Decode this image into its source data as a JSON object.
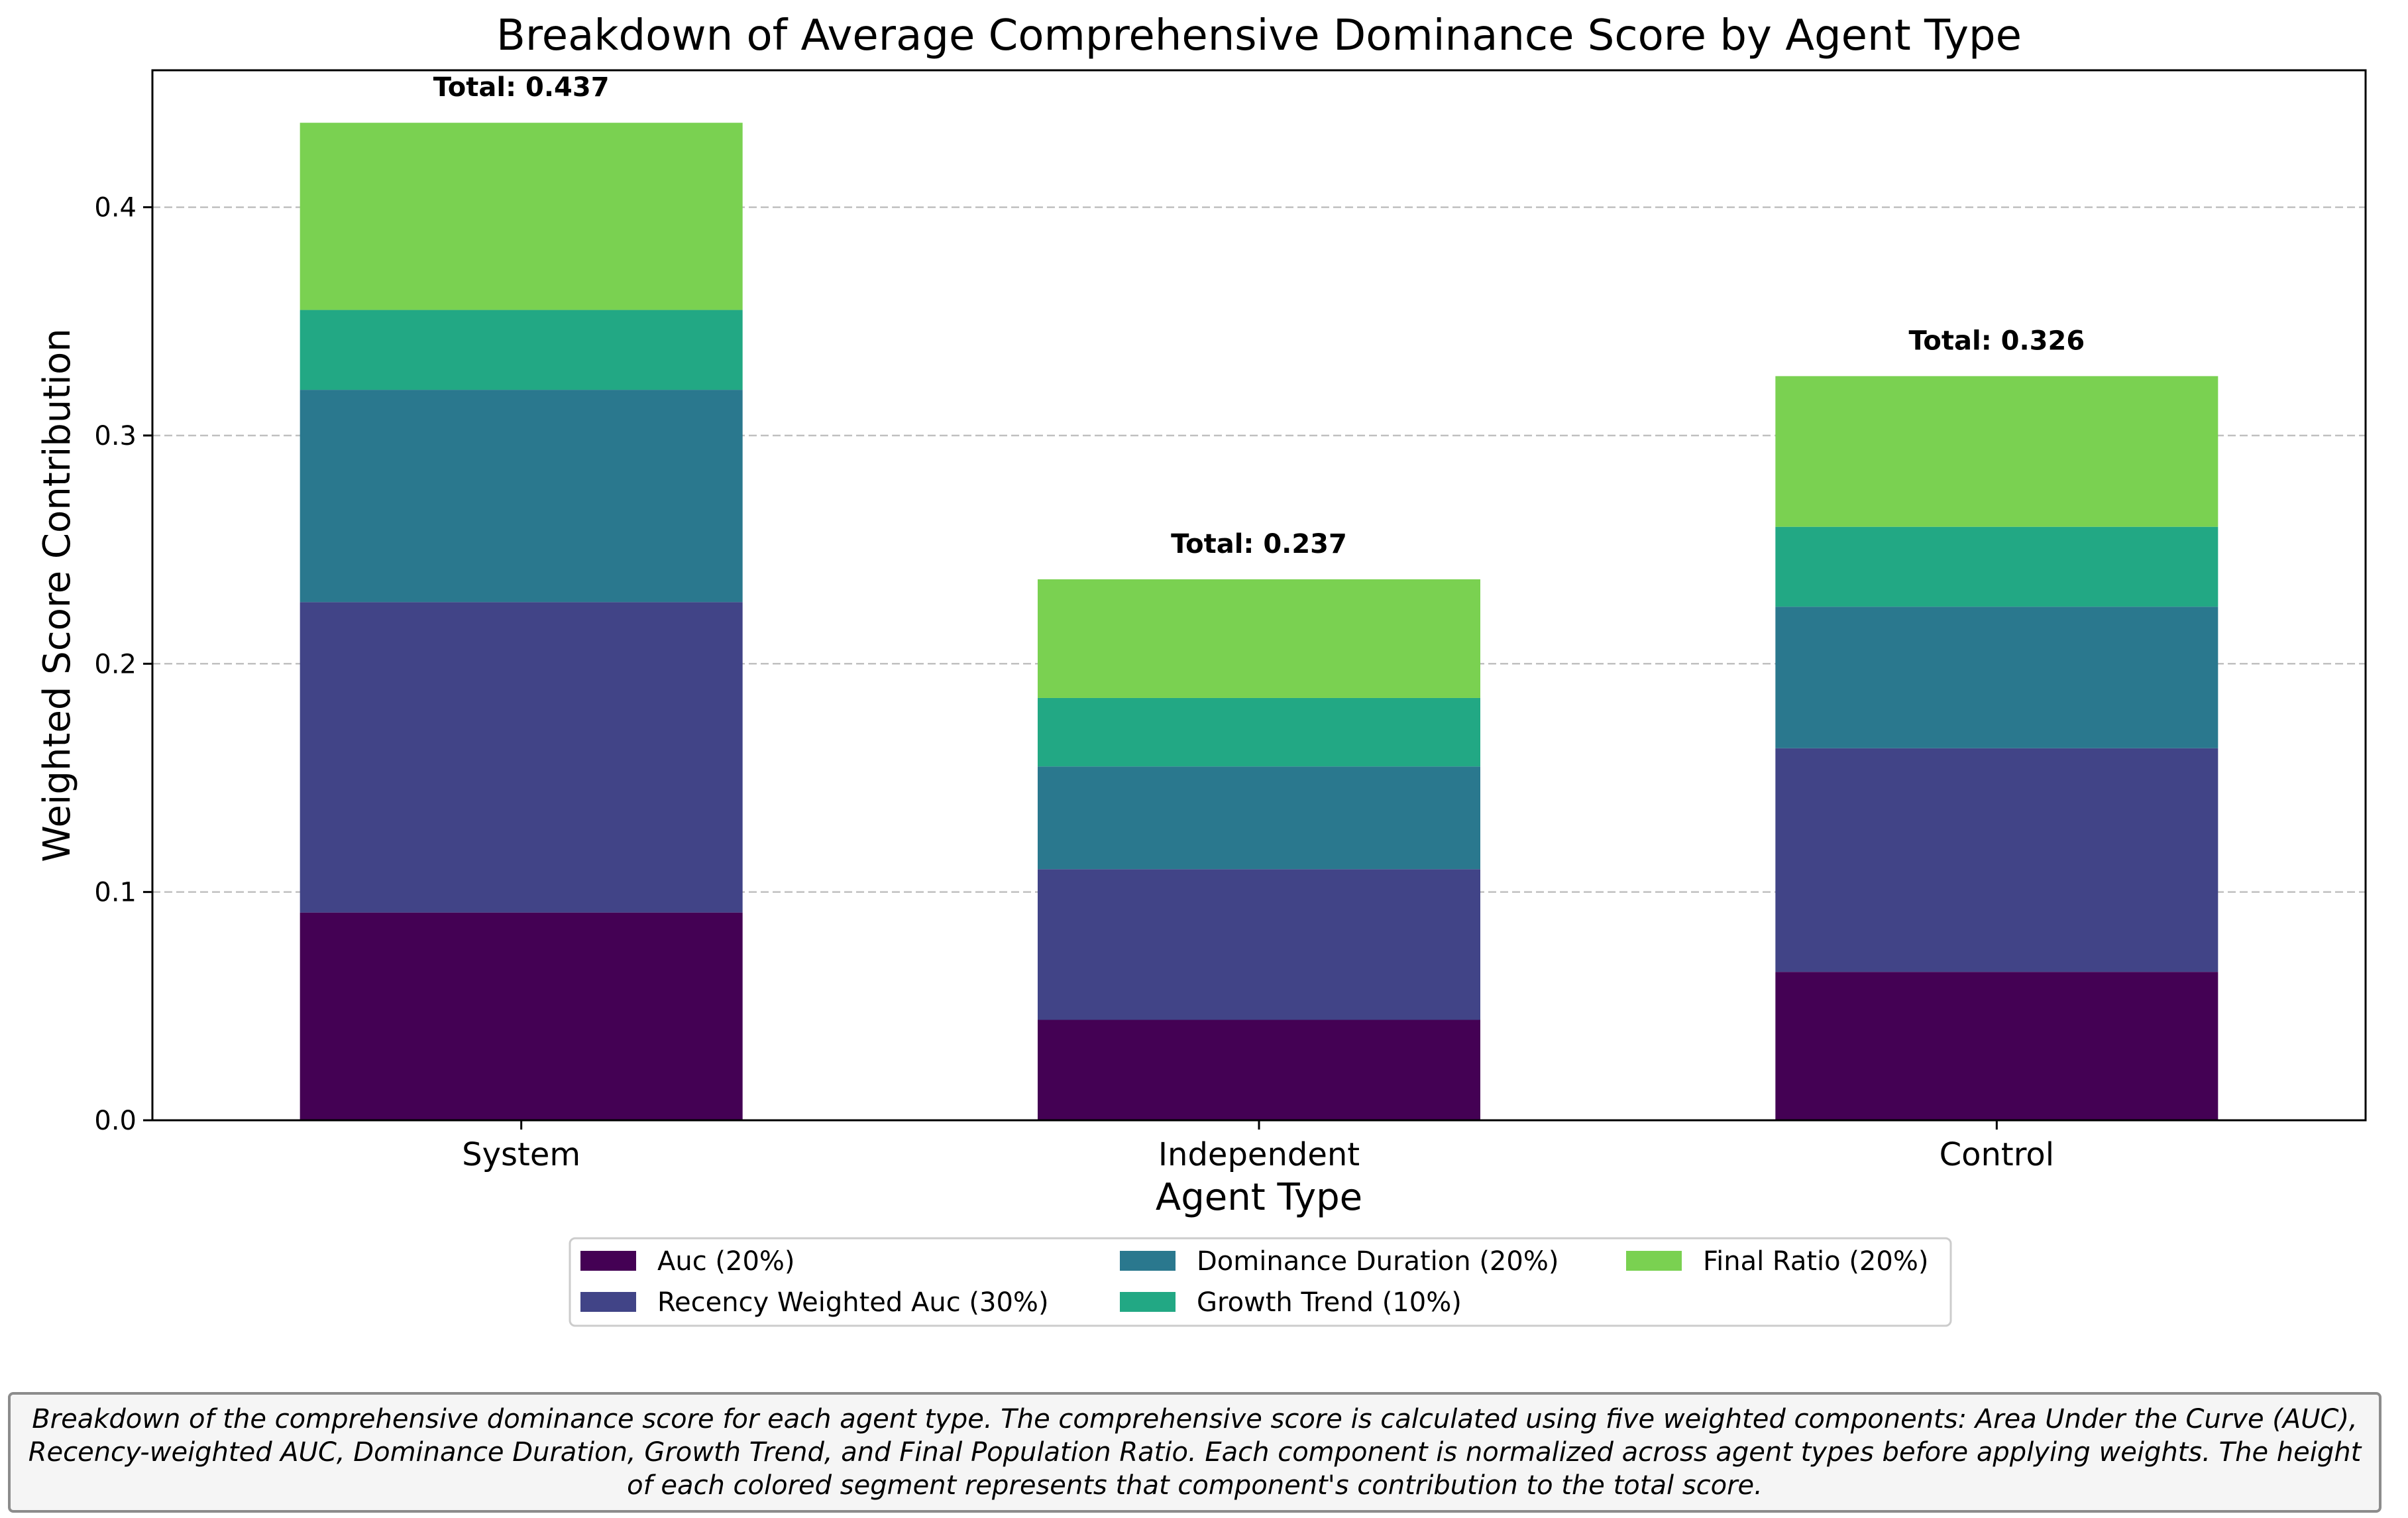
{
  "chart_data": {
    "type": "bar",
    "stacked": true,
    "title": "Breakdown of Average Comprehensive Dominance Score by Agent Type",
    "xlabel": "Agent Type",
    "ylabel": "Weighted Score Contribution",
    "ylim": [
      0,
      0.46
    ],
    "yticks": [
      0.0,
      0.1,
      0.2,
      0.3,
      0.4
    ],
    "ytick_labels": [
      "0.0",
      "0.1",
      "0.2",
      "0.3",
      "0.4"
    ],
    "grid": "y-dashed",
    "legend_position": "bottom-center",
    "categories": [
      "System",
      "Independent",
      "Control"
    ],
    "series": [
      {
        "name": "Auc (20%)",
        "color": "#440154",
        "values": [
          0.091,
          0.044,
          0.065
        ]
      },
      {
        "name": "Recency Weighted Auc (30%)",
        "color": "#414487",
        "values": [
          0.136,
          0.066,
          0.098
        ]
      },
      {
        "name": "Dominance Duration (20%)",
        "color": "#2a788e",
        "values": [
          0.093,
          0.045,
          0.062
        ]
      },
      {
        "name": "Growth Trend (10%)",
        "color": "#22a884",
        "values": [
          0.035,
          0.03,
          0.035
        ]
      },
      {
        "name": "Final Ratio (20%)",
        "color": "#7ad151",
        "values": [
          0.082,
          0.052,
          0.066
        ]
      }
    ],
    "totals": [
      0.437,
      0.237,
      0.326
    ],
    "total_labels": [
      "Total: 0.437",
      "Total: 0.237",
      "Total: 0.326"
    ]
  },
  "caption": "Breakdown of the comprehensive dominance score for each agent type. The comprehensive score is calculated using five weighted components: Area Under the Curve (AUC), Recency-weighted AUC, Dominance Duration, Growth Trend, and Final Population Ratio. Each component is normalized across agent types before applying weights. The height of each colored segment represents that component's contribution to the total score."
}
